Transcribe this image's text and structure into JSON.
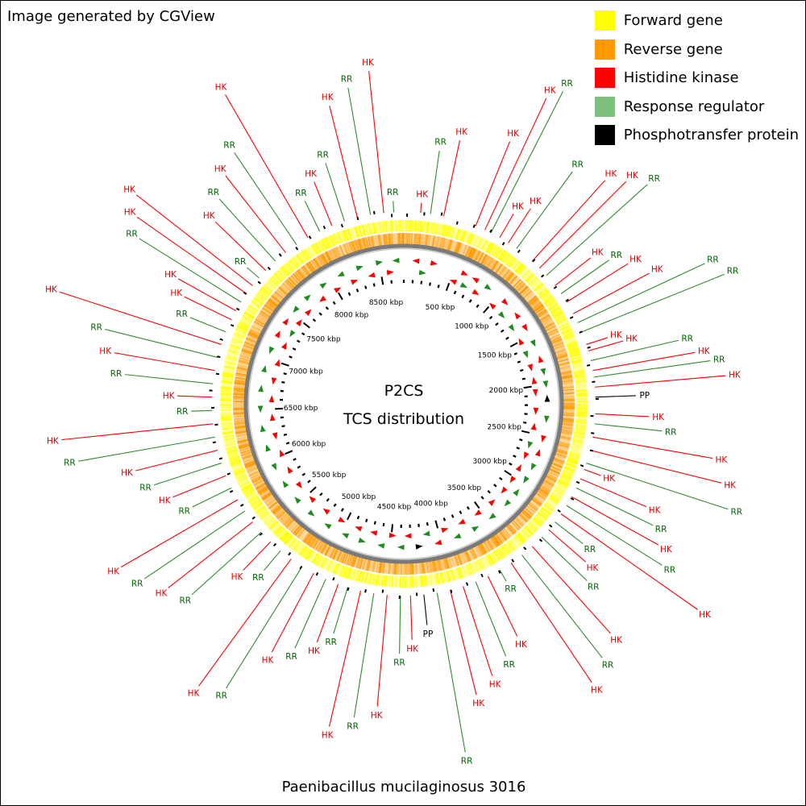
{
  "credit": "Image generated by CGView",
  "caption": "Paenibacillus mucilaginosus 3016",
  "center": {
    "line1": "P2CS",
    "line2": "TCS distribution"
  },
  "legend": [
    {
      "label": "Forward gene",
      "color": "#ffff00"
    },
    {
      "label": "Reverse gene",
      "color": "#ff9900"
    },
    {
      "label": "Histidine kinase",
      "color": "#ff0000"
    },
    {
      "label": "Response regulator",
      "color": "#7ec17e"
    },
    {
      "label": "Phosphotransfer protein",
      "color": "#000000"
    }
  ],
  "genome_length_kbp": 8740,
  "ruler": {
    "labels": [
      "500 kbp",
      "1000 kbp",
      "1500 kbp",
      "2000 kbp",
      "2500 kbp",
      "3000 kbp",
      "3500 kbp",
      "4000 kbp",
      "4500 kbp",
      "5000 kbp",
      "5500 kbp",
      "6000 kbp",
      "6500 kbp",
      "7000 kbp",
      "7500 kbp",
      "8000 kbp",
      "8500 kbp"
    ]
  },
  "feature_label_colors": {
    "HK": "#dd0000",
    "RR": "#006600",
    "PP": "#000000"
  },
  "features": [
    {
      "a": 5,
      "t": "HK"
    },
    {
      "a": 8,
      "t": "RR"
    },
    {
      "a": 12,
      "t": "HK"
    },
    {
      "a": 22,
      "t": "HK"
    },
    {
      "a": 25,
      "t": "HK"
    },
    {
      "a": 27,
      "t": "RR"
    },
    {
      "a": 30,
      "t": "HK"
    },
    {
      "a": 33,
      "t": "HK"
    },
    {
      "a": 36,
      "t": "RR"
    },
    {
      "a": 42,
      "t": "HK"
    },
    {
      "a": 45,
      "t": "HK"
    },
    {
      "a": 48,
      "t": "RR"
    },
    {
      "a": 52,
      "t": "HK"
    },
    {
      "a": 55,
      "t": "RR"
    },
    {
      "a": 58,
      "t": "HK"
    },
    {
      "a": 62,
      "t": "HK"
    },
    {
      "a": 65,
      "t": "RR"
    },
    {
      "a": 68,
      "t": "RR"
    },
    {
      "a": 72,
      "t": "HK"
    },
    {
      "a": 74,
      "t": "HK"
    },
    {
      "a": 77,
      "t": "RR"
    },
    {
      "a": 80,
      "t": "HK"
    },
    {
      "a": 82,
      "t": "RR"
    },
    {
      "a": 85,
      "t": "HK"
    },
    {
      "a": 88,
      "t": "PP"
    },
    {
      "a": 93,
      "t": "HK"
    },
    {
      "a": 96,
      "t": "RR"
    },
    {
      "a": 100,
      "t": "HK"
    },
    {
      "a": 104,
      "t": "HK"
    },
    {
      "a": 108,
      "t": "RR"
    },
    {
      "a": 110,
      "t": "HK"
    },
    {
      "a": 113,
      "t": "HK"
    },
    {
      "a": 116,
      "t": "RR"
    },
    {
      "a": 119,
      "t": "HK"
    },
    {
      "a": 122,
      "t": "RR"
    },
    {
      "a": 125,
      "t": "HK"
    },
    {
      "a": 128,
      "t": "RR"
    },
    {
      "a": 131,
      "t": "HK"
    },
    {
      "a": 134,
      "t": "RR"
    },
    {
      "a": 138,
      "t": "HK"
    },
    {
      "a": 142,
      "t": "RR"
    },
    {
      "a": 146,
      "t": "HK"
    },
    {
      "a": 150,
      "t": "RR"
    },
    {
      "a": 154,
      "t": "HK"
    },
    {
      "a": 158,
      "t": "RR"
    },
    {
      "a": 162,
      "t": "HK"
    },
    {
      "a": 166,
      "t": "HK"
    },
    {
      "a": 170,
      "t": "RR"
    },
    {
      "a": 174,
      "t": "PP"
    },
    {
      "a": 178,
      "t": "HK"
    },
    {
      "a": 181,
      "t": "RR"
    },
    {
      "a": 185,
      "t": "HK"
    },
    {
      "a": 189,
      "t": "RR"
    },
    {
      "a": 193,
      "t": "HK"
    },
    {
      "a": 197,
      "t": "RR"
    },
    {
      "a": 200,
      "t": "HK"
    },
    {
      "a": 204,
      "t": "RR"
    },
    {
      "a": 208,
      "t": "HK"
    },
    {
      "a": 212,
      "t": "RR"
    },
    {
      "a": 216,
      "t": "HK"
    },
    {
      "a": 220,
      "t": "RR"
    },
    {
      "a": 224,
      "t": "HK"
    },
    {
      "a": 228,
      "t": "RR"
    },
    {
      "a": 232,
      "t": "HK"
    },
    {
      "a": 236,
      "t": "RR"
    },
    {
      "a": 240,
      "t": "HK"
    },
    {
      "a": 244,
      "t": "RR"
    },
    {
      "a": 248,
      "t": "HK"
    },
    {
      "a": 252,
      "t": "RR"
    },
    {
      "a": 256,
      "t": "HK"
    },
    {
      "a": 260,
      "t": "RR"
    },
    {
      "a": 264,
      "t": "HK"
    },
    {
      "a": 268,
      "t": "RR"
    },
    {
      "a": 272,
      "t": "HK"
    },
    {
      "a": 276,
      "t": "RR"
    },
    {
      "a": 280,
      "t": "HK"
    },
    {
      "a": 284,
      "t": "RR"
    },
    {
      "a": 288,
      "t": "HK"
    },
    {
      "a": 292,
      "t": "RR"
    },
    {
      "a": 296,
      "t": "HK"
    },
    {
      "a": 299,
      "t": "HK"
    },
    {
      "a": 302,
      "t": "RR"
    },
    {
      "a": 305,
      "t": "HK"
    },
    {
      "a": 308,
      "t": "HK"
    },
    {
      "a": 311,
      "t": "RR"
    },
    {
      "a": 314,
      "t": "HK"
    },
    {
      "a": 318,
      "t": "RR"
    },
    {
      "a": 322,
      "t": "HK"
    },
    {
      "a": 326,
      "t": "RR"
    },
    {
      "a": 330,
      "t": "HK"
    },
    {
      "a": 334,
      "t": "RR"
    },
    {
      "a": 338,
      "t": "HK"
    },
    {
      "a": 342,
      "t": "RR"
    },
    {
      "a": 346,
      "t": "HK"
    },
    {
      "a": 350,
      "t": "RR"
    },
    {
      "a": 354,
      "t": "HK"
    },
    {
      "a": 357,
      "t": "RR"
    }
  ]
}
